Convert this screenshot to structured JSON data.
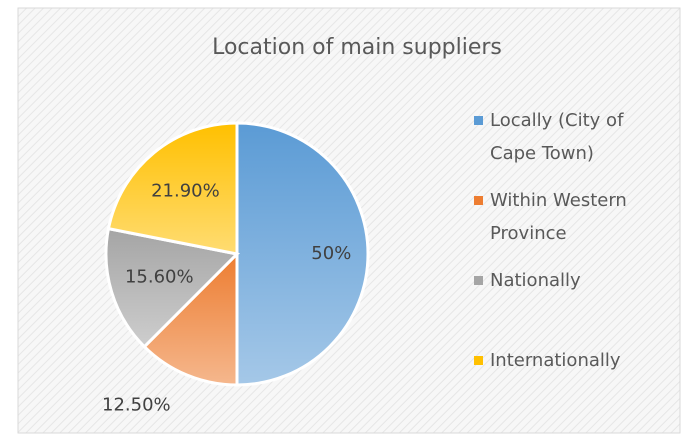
{
  "chart_data": {
    "type": "pie",
    "title": "Location of main suppliers",
    "categories": [
      "Locally (City of Cape Town)",
      "Within Western Province",
      "Nationally",
      "Internationally"
    ],
    "values": [
      50,
      12.5,
      15.6,
      21.9
    ],
    "value_labels": [
      "50%",
      "12.50%",
      "15.60%",
      "21.90%"
    ],
    "colors": [
      "#5b9bd5",
      "#ed7d31",
      "#a5a5a5",
      "#ffc000"
    ],
    "legend": "right"
  }
}
